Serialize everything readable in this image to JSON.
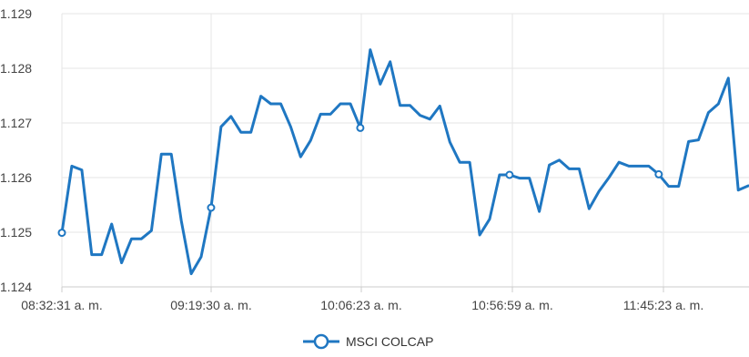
{
  "chart_data": {
    "type": "line",
    "y_ticks": [
      "1.124",
      "1.125",
      "1.126",
      "1.127",
      "1.128",
      "1.129"
    ],
    "ylim": [
      1.124,
      1.129
    ],
    "x_ticks": [
      "08:32:31 a. m.",
      "09:19:30 a. m.",
      "10:06:23 a. m.",
      "10:56:59 a. m.",
      "11:45:23 a. m."
    ],
    "grid": true,
    "legend_position": "bottom-center",
    "series": [
      {
        "name": "MSCI COLCAP",
        "color": "#1f77c2",
        "values": [
          1.12499,
          1.12621,
          1.12614,
          1.12459,
          1.12459,
          1.12515,
          1.12444,
          1.12488,
          1.12488,
          1.12503,
          1.12643,
          1.12643,
          1.12521,
          1.12424,
          1.12455,
          1.12545,
          1.12693,
          1.12712,
          1.12683,
          1.12683,
          1.12749,
          1.12735,
          1.12735,
          1.12693,
          1.12638,
          1.12668,
          1.12716,
          1.12716,
          1.12735,
          1.12735,
          1.12691,
          1.12834,
          1.12771,
          1.12812,
          1.12732,
          1.12732,
          1.12714,
          1.12707,
          1.12731,
          1.12665,
          1.12628,
          1.12628,
          1.12495,
          1.12524,
          1.12605,
          1.12605,
          1.12599,
          1.12599,
          1.12538,
          1.12623,
          1.12632,
          1.12616,
          1.12616,
          1.12543,
          1.12575,
          1.126,
          1.12628,
          1.12621,
          1.12621,
          1.12621,
          1.12606,
          1.12584,
          1.12584,
          1.12666,
          1.12669,
          1.12719,
          1.12735,
          1.12782,
          1.12577,
          1.12585
        ],
        "marker_indices": [
          0,
          15,
          30,
          45,
          60
        ]
      }
    ]
  }
}
